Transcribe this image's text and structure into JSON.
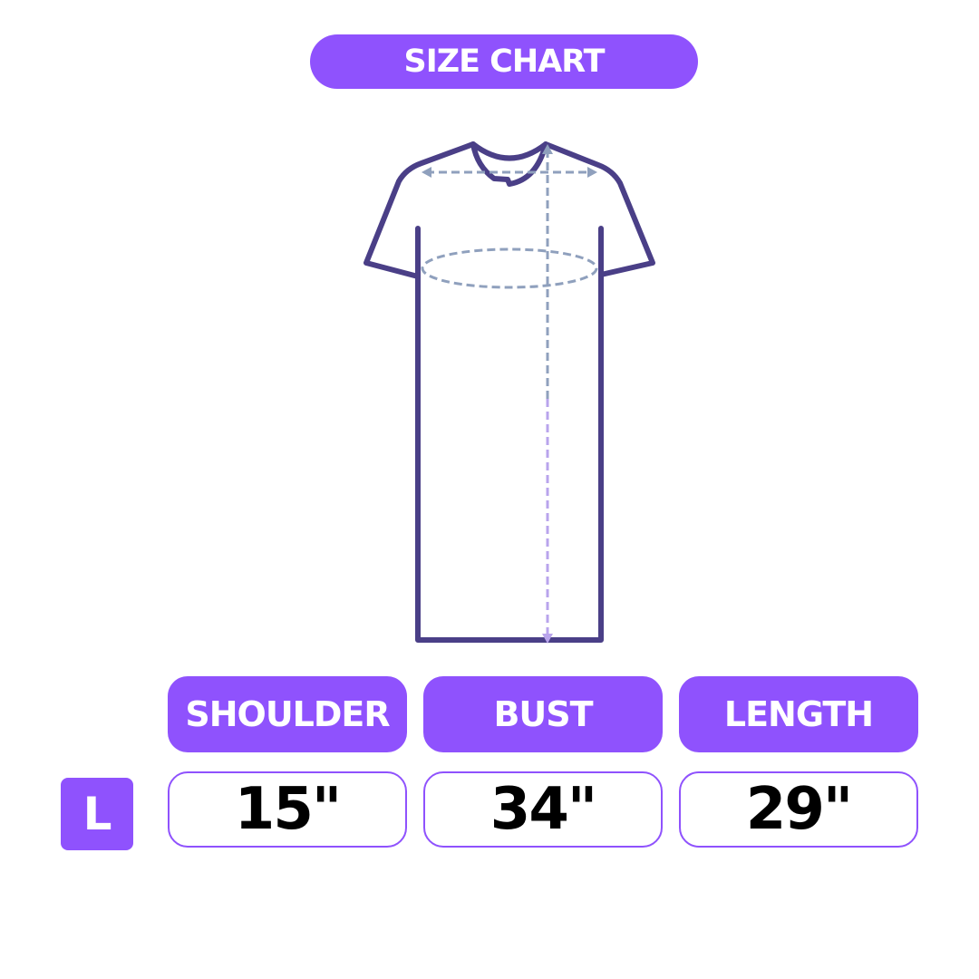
{
  "title": "SIZE CHART",
  "colors": {
    "accent": "#8f52fd",
    "garment": "#4a3f87",
    "measure_line": "#8fa0bd"
  },
  "columns": [
    "SHOULDER",
    "BUST",
    "LENGTH"
  ],
  "rows": [
    {
      "size": "L",
      "values": [
        "15\"",
        "34\"",
        "29\""
      ]
    }
  ]
}
